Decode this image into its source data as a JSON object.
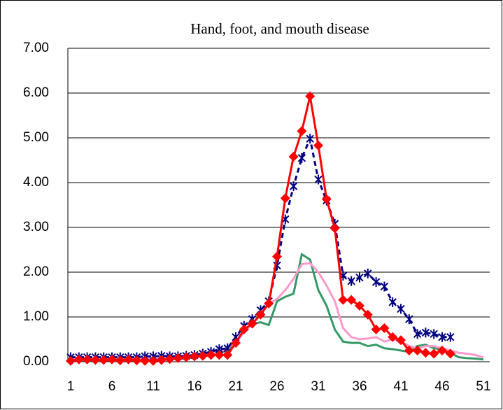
{
  "chart_data": {
    "type": "line",
    "title": "Hand, foot, and mouth disease",
    "categories": [
      "1",
      null,
      null,
      null,
      null,
      "6",
      null,
      null,
      null,
      null,
      "11",
      null,
      null,
      null,
      null,
      "16",
      null,
      null,
      null,
      null,
      "21",
      null,
      null,
      null,
      null,
      "26",
      null,
      null,
      null,
      null,
      "31",
      null,
      null,
      null,
      null,
      "36",
      null,
      null,
      null,
      null,
      "41",
      null,
      null,
      null,
      null,
      "46",
      null,
      null,
      null,
      null,
      "51"
    ],
    "series": [
      {
        "color": "#339966",
        "line_style": "solid",
        "marker": "none",
        "values": [
          0.03,
          0.03,
          0.03,
          0.03,
          0.03,
          0.03,
          0.03,
          0.03,
          0.04,
          0.04,
          0.05,
          0.05,
          0.06,
          0.07,
          0.08,
          0.1,
          0.12,
          0.15,
          0.2,
          0.25,
          0.45,
          0.65,
          0.85,
          0.88,
          0.82,
          1.35,
          1.45,
          1.52,
          2.4,
          2.28,
          1.6,
          1.25,
          0.72,
          0.45,
          0.42,
          0.42,
          0.35,
          0.38,
          0.3,
          0.28,
          0.25,
          0.22,
          0.35,
          0.38,
          0.3,
          0.28,
          0.2,
          0.1,
          0.08,
          0.07,
          0.05
        ]
      },
      {
        "color": "#ff99cc",
        "line_style": "solid",
        "marker": "none",
        "values": [
          0.05,
          0.05,
          0.05,
          0.05,
          0.05,
          0.05,
          0.05,
          0.05,
          0.06,
          0.06,
          0.07,
          0.07,
          0.08,
          0.09,
          0.1,
          0.12,
          0.15,
          0.18,
          0.22,
          0.3,
          0.45,
          0.65,
          0.85,
          1.05,
          1.3,
          1.4,
          1.6,
          1.85,
          2.18,
          2.2,
          2.0,
          1.7,
          1.35,
          0.75,
          0.55,
          0.5,
          0.52,
          0.55,
          0.45,
          0.5,
          0.45,
          0.35,
          0.3,
          0.35,
          0.35,
          0.3,
          0.25,
          0.2,
          0.18,
          0.15,
          0.1
        ]
      },
      {
        "color": "#000080",
        "line_style": "dashed",
        "marker": "asterisk",
        "values": [
          0.1,
          0.1,
          0.1,
          0.1,
          0.1,
          0.1,
          0.1,
          0.1,
          0.1,
          0.12,
          0.12,
          0.13,
          0.12,
          0.12,
          0.13,
          0.15,
          0.18,
          0.22,
          0.28,
          0.3,
          0.55,
          0.8,
          0.95,
          1.15,
          1.35,
          2.15,
          3.18,
          3.92,
          4.55,
          4.98,
          4.07,
          3.6,
          3.08,
          1.92,
          1.8,
          1.88,
          1.97,
          1.78,
          1.68,
          1.33,
          1.18,
          0.95,
          0.62,
          0.65,
          0.62,
          0.55,
          0.55,
          null,
          null,
          null,
          null
        ]
      },
      {
        "color": "#ff0000",
        "line_style": "solid",
        "marker": "diamond",
        "values": [
          0.02,
          0.05,
          0.05,
          0.04,
          0.04,
          0.05,
          0.03,
          0.05,
          0.03,
          0.02,
          0.02,
          0.04,
          0.06,
          0.08,
          0.1,
          0.12,
          0.13,
          0.15,
          0.15,
          0.15,
          0.42,
          0.72,
          0.85,
          1.05,
          1.3,
          2.35,
          3.65,
          4.58,
          5.15,
          5.93,
          4.83,
          3.63,
          2.98,
          1.38,
          1.38,
          1.25,
          1.05,
          0.72,
          0.75,
          0.55,
          0.48,
          0.25,
          0.25,
          0.2,
          0.18,
          0.25,
          0.18,
          null,
          null,
          null,
          null
        ]
      }
    ],
    "ylim": [
      0,
      7
    ],
    "yticks": [
      {
        "value": 0,
        "label": "0.00"
      },
      {
        "value": 1,
        "label": "1.00"
      },
      {
        "value": 2,
        "label": "2.00"
      },
      {
        "value": 3,
        "label": "3.00"
      },
      {
        "value": 4,
        "label": "4.00"
      },
      {
        "value": 5,
        "label": "5.00"
      },
      {
        "value": 6,
        "label": "6.00"
      },
      {
        "value": 7,
        "label": "7.00"
      }
    ],
    "grid": true
  }
}
